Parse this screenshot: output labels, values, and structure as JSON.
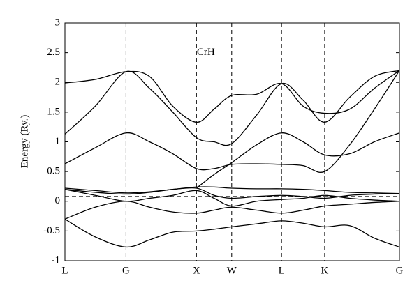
{
  "chart_data": {
    "type": "line",
    "ylabel": "Energy (Ry.)",
    "annotation": {
      "text": "CrH",
      "x": 2.0,
      "y": 2.5
    },
    "color": "#000000",
    "fermi_level": 0.08,
    "xlim": [
      0,
      4.746
    ],
    "ylim": [
      -1,
      3
    ],
    "yticks": [
      -1,
      -0.5,
      0,
      0.5,
      1,
      1.5,
      2,
      2.5,
      3
    ],
    "xticks": [
      {
        "value": 0,
        "label": "L"
      },
      {
        "value": 0.866,
        "label": "G"
      },
      {
        "value": 1.866,
        "label": "X"
      },
      {
        "value": 2.366,
        "label": "W"
      },
      {
        "value": 3.073,
        "label": "L"
      },
      {
        "value": 3.685,
        "label": "K"
      },
      {
        "value": 4.746,
        "label": "G"
      }
    ],
    "x": [
      0,
      0.43,
      0.866,
      1.2,
      1.53,
      1.866,
      2.116,
      2.366,
      2.72,
      3.073,
      3.38,
      3.685,
      4.04,
      4.39,
      4.746
    ],
    "series": [
      {
        "values": [
          -0.3,
          -0.6,
          -0.77,
          -0.65,
          -0.52,
          -0.5,
          -0.47,
          -0.43,
          -0.38,
          -0.33,
          -0.37,
          -0.43,
          -0.41,
          -0.62,
          -0.77
        ]
      },
      {
        "values": [
          -0.3,
          -0.1,
          0.0,
          -0.1,
          -0.18,
          -0.2,
          -0.15,
          -0.1,
          -0.15,
          -0.2,
          -0.15,
          -0.08,
          -0.05,
          -0.02,
          0.0
        ]
      },
      {
        "values": [
          0.2,
          0.1,
          0.0,
          0.05,
          0.1,
          0.18,
          0.05,
          -0.08,
          0.0,
          0.03,
          0.05,
          0.1,
          0.05,
          0.02,
          0.0
        ]
      },
      {
        "values": [
          0.2,
          0.15,
          0.12,
          0.15,
          0.2,
          0.22,
          0.1,
          0.05,
          0.08,
          0.1,
          0.08,
          0.05,
          0.1,
          0.12,
          0.13
        ]
      },
      {
        "values": [
          0.22,
          0.18,
          0.14,
          0.16,
          0.2,
          0.24,
          0.24,
          0.22,
          0.21,
          0.21,
          0.2,
          0.18,
          0.15,
          0.14,
          0.13
        ]
      },
      {
        "values": [
          0.63,
          0.9,
          1.15,
          1.0,
          0.8,
          0.55,
          0.55,
          0.62,
          0.63,
          0.62,
          0.6,
          0.5,
          0.95,
          1.55,
          2.2
        ]
      },
      {
        "values": [
          null,
          null,
          null,
          null,
          null,
          0.22,
          0.45,
          0.65,
          0.95,
          1.15,
          1.0,
          0.78,
          0.8,
          1.0,
          1.15
        ]
      },
      {
        "values": [
          1.13,
          1.6,
          2.18,
          1.9,
          1.5,
          1.07,
          1.0,
          0.97,
          1.45,
          1.98,
          1.7,
          1.33,
          1.75,
          2.1,
          2.2
        ]
      },
      {
        "values": [
          1.99,
          2.05,
          2.18,
          2.1,
          1.6,
          1.33,
          1.55,
          1.78,
          1.8,
          1.98,
          1.6,
          1.48,
          1.55,
          1.9,
          2.2
        ]
      }
    ]
  }
}
